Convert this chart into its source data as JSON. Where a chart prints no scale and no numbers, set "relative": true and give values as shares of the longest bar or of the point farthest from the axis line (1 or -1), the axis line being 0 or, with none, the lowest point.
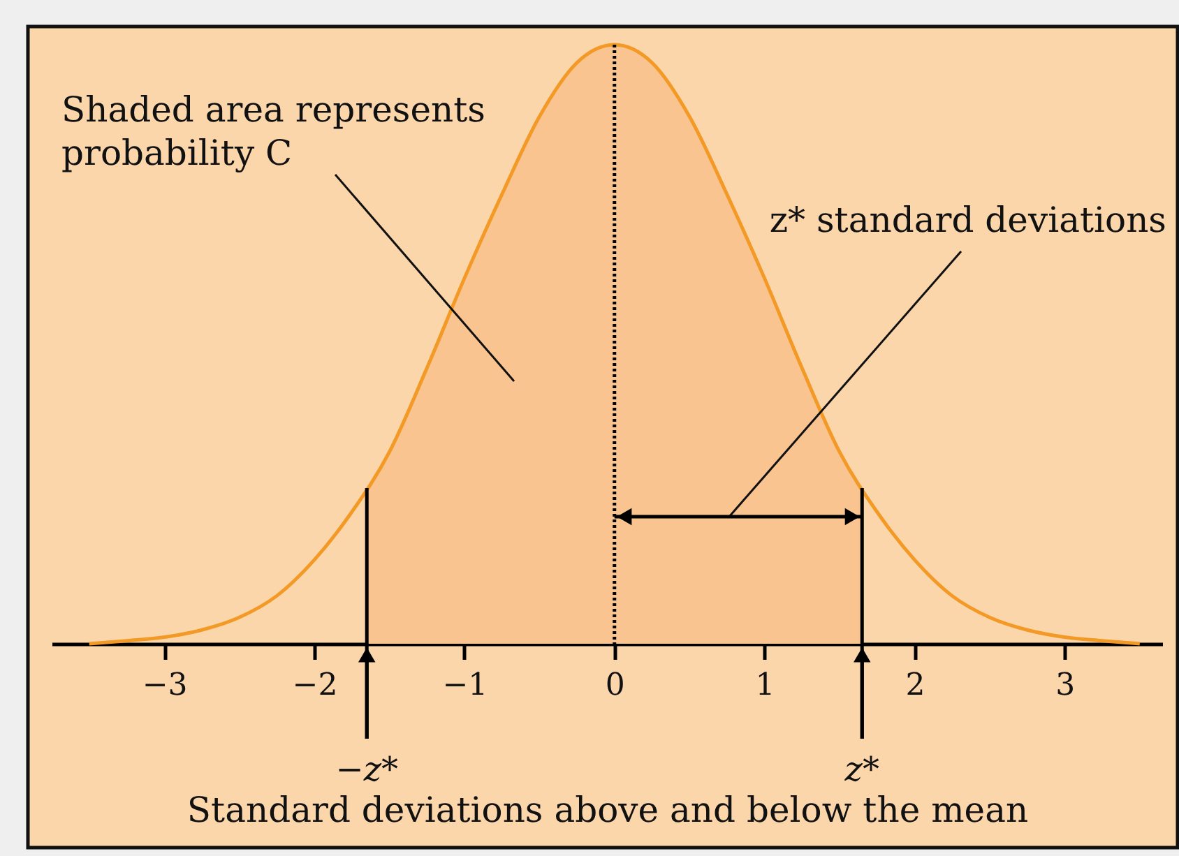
{
  "chart_data": {
    "type": "line",
    "relative": true,
    "xlabel": "Standard deviations above and below the mean",
    "xlim": [
      -3.75,
      3.65
    ],
    "xticks": [
      -3,
      -2,
      -1,
      0,
      1,
      2,
      3
    ],
    "series": [
      {
        "type": "area",
        "color": "#f9c48f",
        "x": [
          -1.65,
          -1.5,
          -1.25,
          -1,
          -0.75,
          -0.5,
          -0.25,
          0,
          0.25,
          0.5,
          0.75,
          1,
          1.25,
          1.5,
          1.65
        ],
        "values": [
          0.26,
          0.32,
          0.46,
          0.61,
          0.75,
          0.88,
          0.97,
          1,
          0.97,
          0.88,
          0.75,
          0.61,
          0.46,
          0.32,
          0.26
        ]
      },
      {
        "color": "#f39a26",
        "x": [
          -3.5,
          -3.25,
          -3,
          -2.75,
          -2.5,
          -2.25,
          -2,
          -1.75,
          -1.5,
          -1.25,
          -1,
          -0.75,
          -0.5,
          -0.25,
          0,
          0.25,
          0.5,
          0.75,
          1,
          1.25,
          1.5,
          1.75,
          2,
          2.25,
          2.5,
          2.75,
          3,
          3.25,
          3.5
        ],
        "values": [
          0,
          0.005,
          0.011,
          0.023,
          0.044,
          0.08,
          0.14,
          0.22,
          0.32,
          0.46,
          0.61,
          0.75,
          0.88,
          0.97,
          1,
          0.97,
          0.88,
          0.75,
          0.61,
          0.46,
          0.32,
          0.22,
          0.14,
          0.08,
          0.044,
          0.023,
          0.011,
          0.005,
          0
        ]
      }
    ],
    "ref_lines": [
      {
        "axis": "x",
        "value": -1.65,
        "label": "−z*",
        "color": "#000000"
      },
      {
        "axis": "x",
        "value": 1.65,
        "label": "z*",
        "color": "#000000"
      },
      {
        "axis": "x",
        "value": 0,
        "color": "#000000",
        "line_style": "dotted"
      }
    ],
    "annotations": [
      "Shaded area represents probability C",
      "z* standard deviations"
    ]
  }
}
